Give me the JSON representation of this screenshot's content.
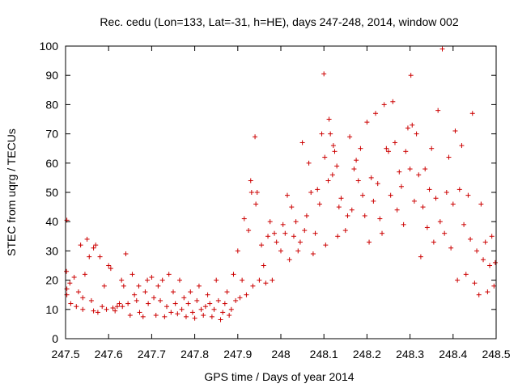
{
  "chart_data": {
    "type": "scatter",
    "title": "Rec. cedu (Lon=133, Lat=-31, h=HE), days 247-248, 2014, window 002",
    "xlabel": "GPS time / Days of year 2014",
    "ylabel": "STEC from uqrg / TECUs",
    "xlim": [
      247.5,
      248.5
    ],
    "ylim": [
      0,
      100
    ],
    "xticks": [
      247.5,
      247.6,
      247.7,
      247.8,
      247.9,
      248.0,
      248.1,
      248.2,
      248.3,
      248.4,
      248.5
    ],
    "xtick_labels": [
      "247.5",
      "247.6",
      "247.7",
      "247.8",
      "247.9",
      "248",
      "248.1",
      "248.2",
      "248.3",
      "248.4",
      "248.5"
    ],
    "yticks": [
      0,
      10,
      20,
      30,
      40,
      50,
      60,
      70,
      80,
      90,
      100
    ],
    "ytick_labels": [
      "0",
      "10",
      "20",
      "30",
      "40",
      "50",
      "60",
      "70",
      "80",
      "90",
      "100"
    ],
    "grid": false,
    "marker": "+",
    "marker_color": "#cc0000",
    "points": [
      [
        247.503,
        40.5
      ],
      [
        247.502,
        23
      ],
      [
        247.503,
        17
      ],
      [
        247.503,
        15
      ],
      [
        247.51,
        19
      ],
      [
        247.512,
        12
      ],
      [
        247.52,
        21
      ],
      [
        247.525,
        11
      ],
      [
        247.53,
        16
      ],
      [
        247.535,
        32
      ],
      [
        247.54,
        10
      ],
      [
        247.54,
        14
      ],
      [
        247.545,
        22
      ],
      [
        247.55,
        34
      ],
      [
        247.555,
        28
      ],
      [
        247.56,
        13
      ],
      [
        247.565,
        31
      ],
      [
        247.565,
        9.5
      ],
      [
        247.57,
        32
      ],
      [
        247.575,
        9
      ],
      [
        247.58,
        28
      ],
      [
        247.585,
        11
      ],
      [
        247.59,
        18
      ],
      [
        247.595,
        10
      ],
      [
        247.6,
        25
      ],
      [
        247.605,
        24
      ],
      [
        247.61,
        10.5
      ],
      [
        247.615,
        9.5
      ],
      [
        247.62,
        11
      ],
      [
        247.625,
        12
      ],
      [
        247.63,
        20
      ],
      [
        247.632,
        11
      ],
      [
        247.635,
        18
      ],
      [
        247.64,
        29
      ],
      [
        247.645,
        12
      ],
      [
        247.65,
        8
      ],
      [
        247.655,
        22
      ],
      [
        247.66,
        15
      ],
      [
        247.665,
        13
      ],
      [
        247.67,
        18
      ],
      [
        247.672,
        9
      ],
      [
        247.68,
        7.5
      ],
      [
        247.685,
        16
      ],
      [
        247.69,
        20
      ],
      [
        247.692,
        12
      ],
      [
        247.7,
        21
      ],
      [
        247.705,
        14
      ],
      [
        247.71,
        8
      ],
      [
        247.715,
        18
      ],
      [
        247.72,
        13
      ],
      [
        247.725,
        20
      ],
      [
        247.73,
        7.5
      ],
      [
        247.735,
        11
      ],
      [
        247.74,
        22
      ],
      [
        247.745,
        9
      ],
      [
        247.75,
        16
      ],
      [
        247.755,
        12
      ],
      [
        247.76,
        8.5
      ],
      [
        247.765,
        20
      ],
      [
        247.77,
        10
      ],
      [
        247.775,
        14
      ],
      [
        247.78,
        7.5
      ],
      [
        247.785,
        12
      ],
      [
        247.79,
        16
      ],
      [
        247.795,
        9
      ],
      [
        247.8,
        7
      ],
      [
        247.805,
        13
      ],
      [
        247.81,
        18
      ],
      [
        247.815,
        10
      ],
      [
        247.82,
        8
      ],
      [
        247.825,
        11
      ],
      [
        247.83,
        15
      ],
      [
        247.835,
        12
      ],
      [
        247.84,
        7.5
      ],
      [
        247.845,
        10
      ],
      [
        247.85,
        20
      ],
      [
        247.855,
        13
      ],
      [
        247.86,
        6.5
      ],
      [
        247.865,
        9
      ],
      [
        247.87,
        12
      ],
      [
        247.875,
        16
      ],
      [
        247.88,
        8
      ],
      [
        247.885,
        10
      ],
      [
        247.89,
        22
      ],
      [
        247.895,
        13
      ],
      [
        247.9,
        30
      ],
      [
        247.905,
        14
      ],
      [
        247.91,
        20
      ],
      [
        247.915,
        41
      ],
      [
        247.92,
        15
      ],
      [
        247.925,
        37
      ],
      [
        247.93,
        54
      ],
      [
        247.932,
        50
      ],
      [
        247.935,
        18
      ],
      [
        247.94,
        69
      ],
      [
        247.942,
        46
      ],
      [
        247.945,
        50
      ],
      [
        247.95,
        20
      ],
      [
        247.955,
        32
      ],
      [
        247.96,
        25
      ],
      [
        247.965,
        19
      ],
      [
        247.97,
        35
      ],
      [
        247.975,
        40
      ],
      [
        247.98,
        20
      ],
      [
        247.985,
        36
      ],
      [
        247.99,
        33
      ],
      [
        248.0,
        30
      ],
      [
        248.005,
        39
      ],
      [
        248.01,
        36
      ],
      [
        248.015,
        49
      ],
      [
        248.02,
        27
      ],
      [
        248.025,
        45
      ],
      [
        248.03,
        35
      ],
      [
        248.035,
        40
      ],
      [
        248.04,
        30
      ],
      [
        248.045,
        33
      ],
      [
        248.05,
        67
      ],
      [
        248.055,
        37
      ],
      [
        248.06,
        42
      ],
      [
        248.065,
        60
      ],
      [
        248.07,
        50
      ],
      [
        248.075,
        29
      ],
      [
        248.08,
        36
      ],
      [
        248.085,
        51
      ],
      [
        248.09,
        46
      ],
      [
        248.095,
        70
      ],
      [
        248.1,
        90.5
      ],
      [
        248.102,
        62
      ],
      [
        248.104,
        32
      ],
      [
        248.11,
        54
      ],
      [
        248.112,
        75
      ],
      [
        248.115,
        70
      ],
      [
        248.12,
        56
      ],
      [
        248.122,
        66
      ],
      [
        248.125,
        64
      ],
      [
        248.13,
        59
      ],
      [
        248.132,
        35
      ],
      [
        248.135,
        45
      ],
      [
        248.14,
        48
      ],
      [
        248.15,
        37
      ],
      [
        248.155,
        42
      ],
      [
        248.16,
        69
      ],
      [
        248.165,
        44
      ],
      [
        248.17,
        58
      ],
      [
        248.175,
        61
      ],
      [
        248.18,
        54
      ],
      [
        248.185,
        65
      ],
      [
        248.19,
        49
      ],
      [
        248.195,
        42
      ],
      [
        248.2,
        74
      ],
      [
        248.205,
        33
      ],
      [
        248.21,
        55
      ],
      [
        248.215,
        47
      ],
      [
        248.22,
        77
      ],
      [
        248.225,
        53
      ],
      [
        248.23,
        41
      ],
      [
        248.235,
        36
      ],
      [
        248.24,
        80
      ],
      [
        248.245,
        65
      ],
      [
        248.25,
        64
      ],
      [
        248.255,
        49
      ],
      [
        248.26,
        81
      ],
      [
        248.265,
        67
      ],
      [
        248.27,
        44
      ],
      [
        248.275,
        57
      ],
      [
        248.28,
        52
      ],
      [
        248.285,
        39
      ],
      [
        248.29,
        64
      ],
      [
        248.295,
        72
      ],
      [
        248.3,
        58
      ],
      [
        248.302,
        90
      ],
      [
        248.305,
        73
      ],
      [
        248.31,
        47
      ],
      [
        248.315,
        70
      ],
      [
        248.32,
        56
      ],
      [
        248.325,
        28
      ],
      [
        248.33,
        45
      ],
      [
        248.335,
        58
      ],
      [
        248.34,
        38
      ],
      [
        248.345,
        51
      ],
      [
        248.35,
        65
      ],
      [
        248.355,
        33
      ],
      [
        248.36,
        48
      ],
      [
        248.365,
        78
      ],
      [
        248.37,
        40
      ],
      [
        248.375,
        99
      ],
      [
        248.38,
        36
      ],
      [
        248.385,
        50
      ],
      [
        248.39,
        62
      ],
      [
        248.395,
        31
      ],
      [
        248.4,
        46
      ],
      [
        248.405,
        71
      ],
      [
        248.41,
        20
      ],
      [
        248.415,
        51
      ],
      [
        248.42,
        66
      ],
      [
        248.425,
        39
      ],
      [
        248.43,
        22
      ],
      [
        248.435,
        49
      ],
      [
        248.44,
        34
      ],
      [
        248.445,
        77
      ],
      [
        248.45,
        19
      ],
      [
        248.455,
        30
      ],
      [
        248.46,
        15
      ],
      [
        248.465,
        46
      ],
      [
        248.47,
        27
      ],
      [
        248.475,
        33
      ],
      [
        248.48,
        16
      ],
      [
        248.485,
        25
      ],
      [
        248.49,
        35
      ],
      [
        248.495,
        18
      ],
      [
        248.498,
        26
      ]
    ]
  }
}
